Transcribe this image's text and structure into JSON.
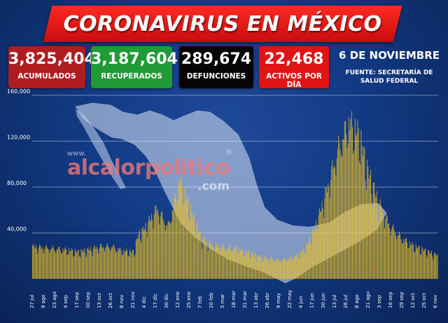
{
  "header": {
    "title": "CORONAVIRUS EN MÉXICO"
  },
  "stats": [
    {
      "value": "3,825,404",
      "label": "ACUMULADOS",
      "color": "#b01d21"
    },
    {
      "value": "3,187,604",
      "label": "RECUPERADOS",
      "color": "#1f9a35"
    },
    {
      "value": "289,674",
      "label": "DEFUNCIONES",
      "color": "#050505"
    },
    {
      "value": "22,468",
      "label": "ACTIVOS POR DÍA",
      "color": "#e01414"
    }
  ],
  "date": "6 DE NOVIEMBRE",
  "source_line1": "FUENTE: SECRETARÍA DE",
  "source_line2": "SALUD FEDERAL",
  "watermark": {
    "www": "www.",
    "name": "alcalorpolitico",
    "reg": "®",
    "com": ".com"
  },
  "chart_data": {
    "type": "bar",
    "title": "",
    "xlabel": "",
    "ylabel": "",
    "ylim": [
      0,
      160000
    ],
    "yticks": [
      40000,
      80000,
      120000,
      160000
    ],
    "ytick_labels": [
      "40,000",
      "80,000",
      "120,000",
      "160,000"
    ],
    "xtick_labels": [
      "27 jul",
      "9 ago",
      "23 ago",
      "4 sep",
      "17 sep",
      "30 sep",
      "13 oct",
      "26 oct",
      "8 nov",
      "21 nov",
      "4 dic",
      "17 dic",
      "30 dic",
      "12 ene",
      "25 ene",
      "7 feb",
      "20 feb",
      "5 mar",
      "18 mar",
      "31 mar",
      "13 abr",
      "26 abr",
      "9 may",
      "22 may",
      "4 jun",
      "17 jun",
      "30 jun",
      "13 jul",
      "26 jul",
      "8 ago",
      "21 ago",
      "3 sep",
      "16 sep",
      "29 sep",
      "12 oct",
      "25 oct",
      "6 nov"
    ],
    "grid": true,
    "bar_color": "#f0c21e",
    "series": [
      {
        "key_days": [
          0,
          13,
          27,
          39,
          52,
          65,
          78,
          91,
          104,
          117,
          121,
          130,
          143,
          156,
          162,
          169,
          180,
          195,
          208,
          221,
          234,
          247,
          260,
          273,
          286,
          299,
          312,
          325,
          338,
          351,
          364,
          376,
          385,
          398,
          411,
          424,
          437,
          449,
          466
        ],
        "values": [
          29000,
          28000,
          27000,
          26000,
          24000,
          26000,
          29000,
          29000,
          25000,
          24000,
          38000,
          46000,
          63000,
          47000,
          64000,
          88000,
          65000,
          35000,
          30000,
          28000,
          27000,
          24000,
          20000,
          18000,
          17000,
          19000,
          25000,
          45000,
          78000,
          115000,
          140000,
          128000,
          98000,
          68000,
          48000,
          37000,
          30000,
          26000,
          21000
        ]
      }
    ]
  }
}
